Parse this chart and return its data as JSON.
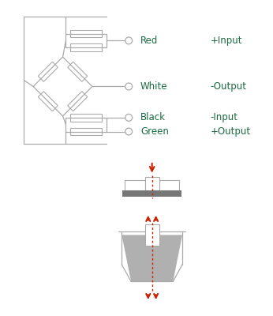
{
  "bg_color": "#ffffff",
  "wire_color": "#aaaaaa",
  "text_color": "#1a6b40",
  "arrow_color": "#cc2200",
  "resistor_fill": "#ffffff",
  "resistor_edge": "#aaaaaa",
  "plate_dark": "#777777",
  "load_gray": "#b0b0b0",
  "labels": [
    "Red",
    "White",
    "Black",
    "Green"
  ],
  "descriptions": [
    "+Input",
    "-Output",
    "-Input",
    "+Output"
  ],
  "label_fontsize": 8.5,
  "figsize": [
    3.46,
    4.0
  ],
  "dpi": 100
}
